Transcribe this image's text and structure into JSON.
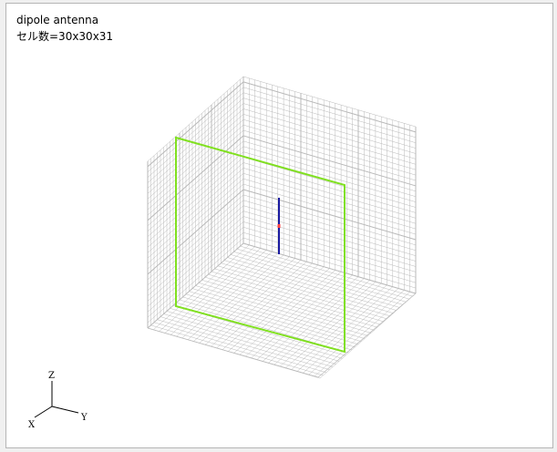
{
  "title": "dipole antenna",
  "cell_count_label": "セル数=30x30x31",
  "axes": {
    "x_label": "X",
    "y_label": "Y",
    "z_label": "Z"
  },
  "colors": {
    "grid": "#b9b9b9",
    "observation_plane": "#80e020",
    "antenna": "#1a1aa0",
    "feed": "#ff4040",
    "axes": "#000000"
  }
}
